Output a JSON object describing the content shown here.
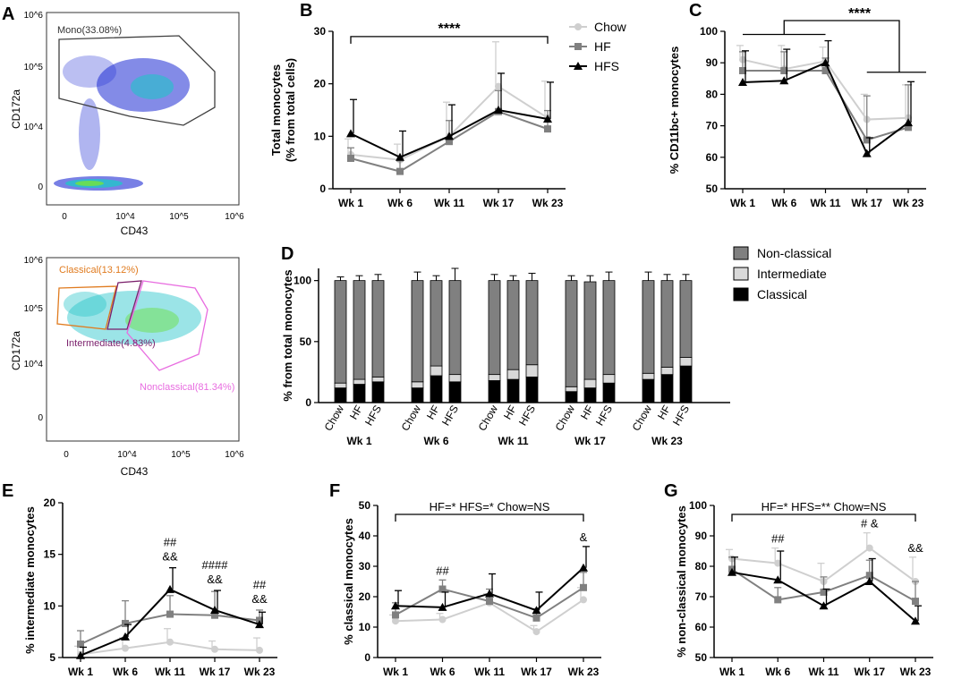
{
  "colors": {
    "chow": "#cfcfcf",
    "hf": "#808080",
    "hfs": "#000000",
    "mono_gate": "#404040",
    "classical_gate": "#e07b1f",
    "intermediate_gate": "#7a1f6b",
    "nonclassical_gate": "#e86ce0",
    "bar_nonclassical": "#808080",
    "bar_intermediate": "#d9d9d9",
    "bar_classical": "#000000"
  },
  "panels": {
    "A": {
      "letter": "A",
      "top": {
        "gate_label": "Mono(33.08%)",
        "xlabel": "CD43",
        "ylabel": "CD172a",
        "xticks": [
          "0",
          "10^4",
          "10^5",
          "10^6"
        ],
        "yticks": [
          "10^6",
          "10^5",
          "10^4",
          "0"
        ]
      },
      "bottom": {
        "classical_label": "Classical(13.12%)",
        "intermediate_label": "Intermediate(4.83%)",
        "nonclassical_label": "Nonclassical(81.34%)",
        "xlabel": "CD43",
        "ylabel": "CD172a",
        "xticks": [
          "0",
          "10^4",
          "10^5",
          "10^6"
        ],
        "yticks": [
          "10^6",
          "10^5",
          "10^4",
          "0"
        ]
      }
    }
  },
  "legend_lines": [
    {
      "name": "Chow",
      "marker": "circle"
    },
    {
      "name": "HF",
      "marker": "square"
    },
    {
      "name": "HFS",
      "marker": "triangle"
    }
  ],
  "legend_bars": [
    "Non-classical",
    "Intermediate",
    "Classical"
  ],
  "chart_data": [
    {
      "id": "B",
      "letter": "B",
      "type": "line",
      "title": "",
      "xlabel": "",
      "ylabel": "Total monocytes",
      "ylabel2": "(% from total cells)",
      "categories": [
        "Wk 1",
        "Wk 6",
        "Wk 11",
        "Wk 17",
        "Wk 23"
      ],
      "ylim": [
        0,
        30
      ],
      "yticks": [
        "0",
        "10",
        "20",
        "30"
      ],
      "series": [
        {
          "name": "Chow",
          "values": [
            6.5,
            5.5,
            10.0,
            19.5,
            13.5
          ],
          "err": [
            3.0,
            3.0,
            6.5,
            8.5,
            7.0
          ]
        },
        {
          "name": "HF",
          "values": [
            5.8,
            3.3,
            9.0,
            14.7,
            11.4
          ],
          "err": [
            2.0,
            2.0,
            4.0,
            4.0,
            3.5
          ]
        },
        {
          "name": "HFS",
          "values": [
            10.5,
            6.0,
            10.0,
            15.0,
            13.3
          ],
          "err": [
            6.5,
            5.0,
            6.0,
            7.0,
            7.0
          ]
        }
      ],
      "annotations": [
        {
          "text": "****",
          "x_from": 0,
          "x_to": 4,
          "y": 29
        }
      ]
    },
    {
      "id": "C",
      "letter": "C",
      "type": "line",
      "title": "",
      "xlabel": "",
      "ylabel": "% CD11bc+ monocytes",
      "categories": [
        "Wk 1",
        "Wk 6",
        "Wk 11",
        "Wk 17",
        "Wk 23"
      ],
      "ylim": [
        50,
        100
      ],
      "yticks": [
        "50",
        "60",
        "70",
        "80",
        "90",
        "100"
      ],
      "series": [
        {
          "name": "Chow",
          "values": [
            91.0,
            88.0,
            90.5,
            72.0,
            72.5
          ],
          "err": [
            4.5,
            7.5,
            4.5,
            8.0,
            10.5
          ]
        },
        {
          "name": "HF",
          "values": [
            87.5,
            87.5,
            87.5,
            65.5,
            69.5
          ],
          "err": [
            6.0,
            6.0,
            4.0,
            14.0,
            13.5
          ]
        },
        {
          "name": "HFS",
          "values": [
            83.8,
            84.3,
            90.0,
            61.2,
            71.0
          ],
          "err": [
            10.0,
            10.0,
            7.0,
            5.0,
            13.0
          ]
        }
      ],
      "annotations": [
        {
          "text": "****",
          "type": "group_bracket"
        }
      ]
    },
    {
      "id": "D",
      "letter": "D",
      "type": "bar",
      "stacked": true,
      "title": "",
      "xlabel": "",
      "ylabel": "% from total monocytes",
      "ylim": [
        0,
        110
      ],
      "yticks": [
        "0",
        "50",
        "100"
      ],
      "groups": [
        "Wk 1",
        "Wk 6",
        "Wk 11",
        "Wk 17",
        "Wk 23"
      ],
      "categories": [
        "Chow",
        "HF",
        "HFS"
      ],
      "series": [
        {
          "name": "Classical",
          "values": [
            [
              12,
              15,
              17
            ],
            [
              12,
              22,
              17
            ],
            [
              18,
              19,
              21
            ],
            [
              9,
              12,
              16
            ],
            [
              19,
              23,
              30
            ]
          ],
          "err": [
            [
              3,
              2,
              3
            ],
            [
              3,
              3,
              4
            ],
            [
              3,
              3,
              4
            ],
            [
              3,
              4,
              3
            ],
            [
              3,
              4,
              4
            ]
          ]
        },
        {
          "name": "Intermediate",
          "values": [
            [
              4,
              4,
              4
            ],
            [
              5,
              8,
              6
            ],
            [
              5,
              8,
              10
            ],
            [
              4,
              7,
              7
            ],
            [
              5,
              6,
              7
            ]
          ],
          "err": [
            [
              2,
              2,
              2
            ],
            [
              3,
              3,
              4
            ],
            [
              3,
              3,
              5
            ],
            [
              2,
              4,
              4
            ],
            [
              2,
              3,
              3
            ]
          ]
        },
        {
          "name": "Non-classical",
          "values": [
            [
              84,
              81,
              79
            ],
            [
              83,
              70,
              77
            ],
            [
              77,
              73,
              69
            ],
            [
              87,
              80,
              77
            ],
            [
              76,
              71,
              63
            ]
          ],
          "err": [
            [
              3,
              4,
              5
            ],
            [
              7,
              4,
              10
            ],
            [
              5,
              4,
              6
            ],
            [
              4,
              5,
              7
            ],
            [
              7,
              5,
              5
            ]
          ]
        }
      ]
    },
    {
      "id": "E",
      "letter": "E",
      "type": "line",
      "title": "",
      "xlabel": "",
      "ylabel": "% intermediate monocytes",
      "categories": [
        "Wk 1",
        "Wk 6",
        "Wk 11",
        "Wk 17",
        "Wk 23"
      ],
      "ylim": [
        5,
        20
      ],
      "yticks": [
        "5",
        "10",
        "15",
        "20"
      ],
      "series": [
        {
          "name": "Chow",
          "values": [
            5.3,
            5.9,
            6.5,
            5.8,
            5.7
          ],
          "err": [
            0.8,
            1.0,
            1.3,
            0.8,
            1.2
          ]
        },
        {
          "name": "HF",
          "values": [
            6.3,
            8.3,
            9.2,
            9.1,
            8.6
          ],
          "err": [
            1.3,
            2.2,
            1.8,
            2.3,
            1.0
          ]
        },
        {
          "name": "HFS",
          "values": [
            5.2,
            7.0,
            11.6,
            9.6,
            8.2
          ],
          "err": [
            0.8,
            1.2,
            2.1,
            1.9,
            1.2
          ]
        }
      ],
      "annotations": [
        {
          "text": "##",
          "x": 2,
          "line": 1
        },
        {
          "text": "&&",
          "x": 2,
          "line": 2
        },
        {
          "text": "####",
          "x": 3,
          "line": 1
        },
        {
          "text": "&&",
          "x": 3,
          "line": 2
        },
        {
          "text": "##",
          "x": 4,
          "line": 1
        },
        {
          "text": "&&",
          "x": 4,
          "line": 2
        }
      ]
    },
    {
      "id": "F",
      "letter": "F",
      "type": "line",
      "title": "",
      "xlabel": "",
      "ylabel": "% classical monocytes",
      "categories": [
        "Wk 1",
        "Wk 6",
        "Wk 11",
        "Wk 17",
        "Wk 23"
      ],
      "ylim": [
        0,
        50
      ],
      "yticks": [
        "0",
        "10",
        "20",
        "30",
        "40",
        "50"
      ],
      "series": [
        {
          "name": "Chow",
          "values": [
            12.0,
            12.5,
            18.0,
            8.5,
            19.0
          ],
          "err": [
            2.0,
            2.0,
            3.0,
            2.0,
            4.0
          ]
        },
        {
          "name": "HF",
          "values": [
            14.0,
            22.5,
            18.5,
            13.0,
            23.0
          ],
          "err": [
            4.0,
            3.0,
            4.0,
            3.0,
            5.0
          ]
        },
        {
          "name": "HFS",
          "values": [
            17.0,
            16.5,
            21.0,
            15.5,
            29.5
          ],
          "err": [
            5.0,
            5.0,
            6.5,
            6.0,
            7.0
          ]
        }
      ],
      "annotations": [
        {
          "text": "HF=* HFS=* Chow=NS",
          "type": "bracket"
        },
        {
          "text": "##",
          "x": 1
        },
        {
          "text": "&",
          "x": 4
        }
      ]
    },
    {
      "id": "G",
      "letter": "G",
      "type": "line",
      "title": "",
      "xlabel": "",
      "ylabel": "% non-classical monocytes",
      "categories": [
        "Wk 1",
        "Wk 6",
        "Wk 11",
        "Wk 17",
        "Wk 23"
      ],
      "ylim": [
        50,
        100
      ],
      "yticks": [
        "50",
        "60",
        "70",
        "80",
        "90",
        "100"
      ],
      "series": [
        {
          "name": "Chow",
          "values": [
            82.5,
            81.0,
            75.0,
            86.0,
            75.0
          ],
          "err": [
            3.0,
            5.0,
            6.0,
            5.0,
            8.0
          ]
        },
        {
          "name": "HF",
          "values": [
            79.0,
            69.0,
            71.5,
            77.0,
            68.5
          ],
          "err": [
            4.0,
            4.0,
            5.0,
            5.0,
            6.5
          ]
        },
        {
          "name": "HFS",
          "values": [
            78.0,
            75.5,
            67.0,
            75.0,
            62.0
          ],
          "err": [
            5.0,
            9.5,
            5.5,
            7.5,
            5.0
          ]
        }
      ],
      "annotations": [
        {
          "text": "HF=* HFS=** Chow=NS",
          "type": "bracket"
        },
        {
          "text": "##",
          "x": 1
        },
        {
          "text": "# &",
          "x": 3
        },
        {
          "text": "&&",
          "x": 4
        }
      ]
    }
  ]
}
